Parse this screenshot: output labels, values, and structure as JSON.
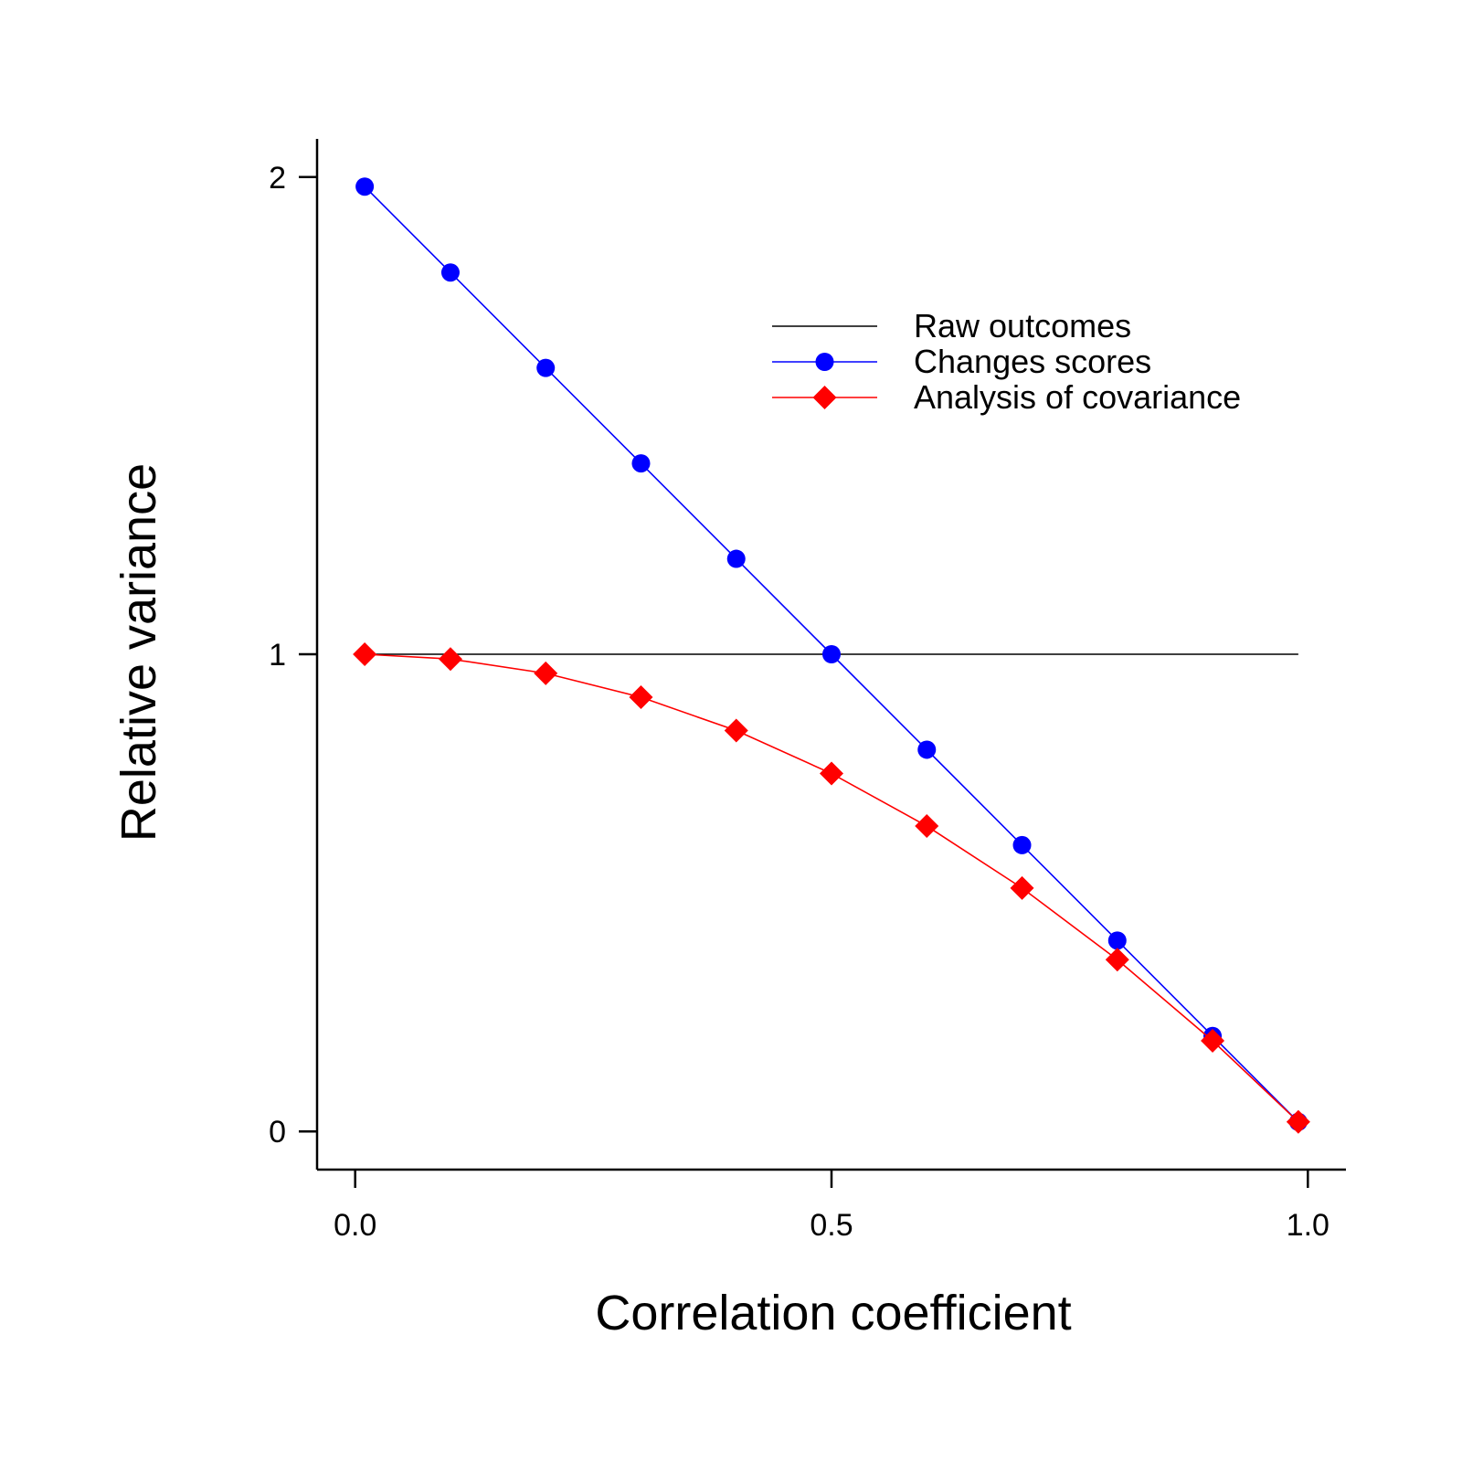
{
  "chart_data": {
    "type": "line",
    "xlabel": "Correlation coefficient",
    "ylabel": "Relative variance",
    "xlim": [
      -0.04,
      1.04
    ],
    "ylim": [
      -0.08,
      2.08
    ],
    "xticks": [
      0.0,
      0.5,
      1.0
    ],
    "xtick_labels": [
      "0.0",
      "0.5",
      "1.0"
    ],
    "yticks": [
      0,
      1,
      2
    ],
    "ytick_labels": [
      "0",
      "1",
      "2"
    ],
    "grid": false,
    "legend_position": "top-right",
    "series": [
      {
        "name": "Raw outcomes",
        "color": "#000000",
        "marker": "none",
        "x": [
          0.01,
          0.99
        ],
        "y": [
          1.0,
          1.0
        ]
      },
      {
        "name": "Changes scores",
        "color": "#0000ff",
        "marker": "circle",
        "x": [
          0.01,
          0.1,
          0.2,
          0.3,
          0.4,
          0.5,
          0.6,
          0.7,
          0.8,
          0.9,
          0.99
        ],
        "y": [
          1.98,
          1.8,
          1.6,
          1.4,
          1.2,
          1.0,
          0.8,
          0.6,
          0.4,
          0.2,
          0.02
        ]
      },
      {
        "name": "Analysis of covariance",
        "color": "#ff0000",
        "marker": "diamond",
        "x": [
          0.01,
          0.1,
          0.2,
          0.3,
          0.4,
          0.5,
          0.6,
          0.7,
          0.8,
          0.9,
          0.99
        ],
        "y": [
          1.0,
          0.99,
          0.96,
          0.91,
          0.84,
          0.75,
          0.64,
          0.51,
          0.36,
          0.19,
          0.02
        ]
      }
    ]
  }
}
